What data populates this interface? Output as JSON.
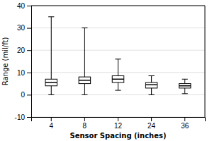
{
  "chart_data": {
    "type": "box",
    "categories": [
      "4",
      "8",
      "12",
      "24",
      "36"
    ],
    "xlabel": "Sensor Spacing (inches)",
    "ylabel": "Range (mil/ft)",
    "ylim": [
      -10,
      40
    ],
    "yticks": [
      -10,
      0,
      10,
      20,
      30,
      40
    ],
    "boxes": [
      {
        "whislo": 0.0,
        "q1": 4.0,
        "med": 5.5,
        "q3": 7.0,
        "whishi": 35.0
      },
      {
        "whislo": 0.0,
        "q1": 5.0,
        "med": 6.5,
        "q3": 8.0,
        "whishi": 30.0
      },
      {
        "whislo": 2.0,
        "q1": 5.5,
        "med": 7.0,
        "q3": 8.5,
        "whishi": 16.0
      },
      {
        "whislo": 0.0,
        "q1": 3.0,
        "med": 4.5,
        "q3": 5.5,
        "whishi": 8.5
      },
      {
        "whislo": 0.5,
        "q1": 3.0,
        "med": 4.0,
        "q3": 5.0,
        "whishi": 7.0
      }
    ],
    "color": "#000000",
    "grid": true
  }
}
